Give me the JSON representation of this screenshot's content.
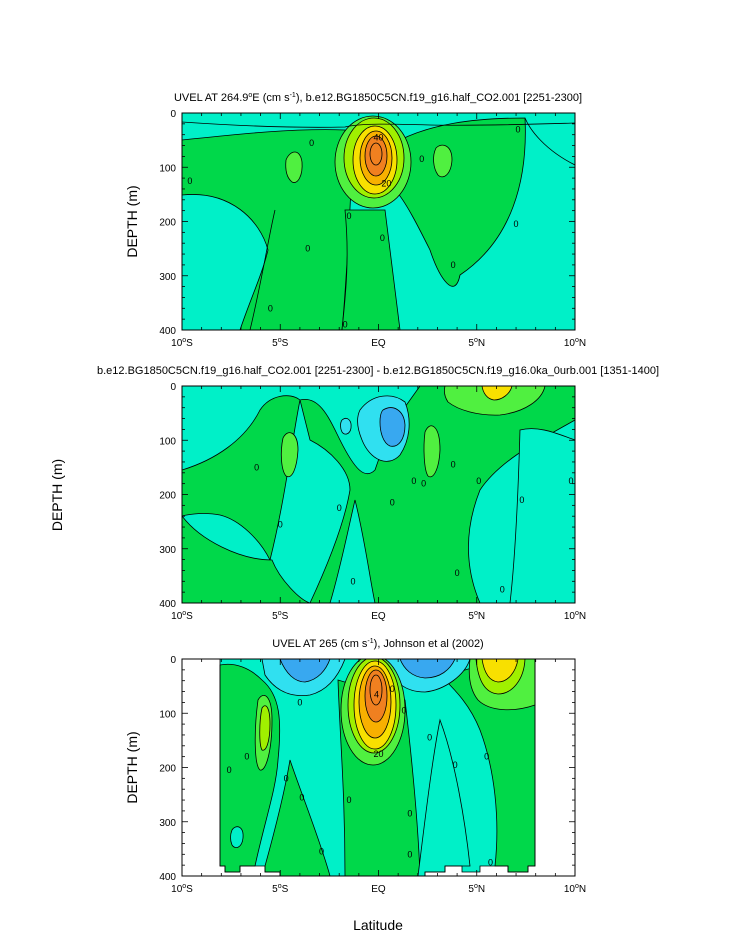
{
  "chart_data": [
    {
      "type": "contour",
      "title_main": "UVEL AT 264.9",
      "title_sup1": "o",
      "title_mid": "E (cm s",
      "title_sup2": "-1",
      "title_end": "), b.e12.BG1850C5CN.f19_g16.half_CO2.001 [2251-2300]",
      "ylabel": "DEPTH (m)",
      "ylim": [
        0,
        400
      ],
      "yticks": [
        "0",
        "100",
        "200",
        "300",
        "400"
      ],
      "xlim": [
        -10,
        10
      ],
      "xticks": [
        {
          "base": "10",
          "sup": "o",
          "tail": "S"
        },
        {
          "base": "5",
          "sup": "o",
          "tail": "S"
        },
        {
          "base": "EQ",
          "sup": "",
          "tail": ""
        },
        {
          "base": "5",
          "sup": "o",
          "tail": "N"
        },
        {
          "base": "10",
          "sup": "o",
          "tail": "N"
        }
      ],
      "contour_labels": [
        {
          "text": "40",
          "lat": 0.0,
          "depth": 45
        },
        {
          "text": "20",
          "lat": 0.4,
          "depth": 130
        },
        {
          "text": "0",
          "lat": -3.4,
          "depth": 55
        },
        {
          "text": "0",
          "lat": -9.6,
          "depth": 125
        },
        {
          "text": "0",
          "lat": -3.6,
          "depth": 250
        },
        {
          "text": "0",
          "lat": -5.5,
          "depth": 360
        },
        {
          "text": "0",
          "lat": -1.5,
          "depth": 190
        },
        {
          "text": "0",
          "lat": -1.7,
          "depth": 390
        },
        {
          "text": "0",
          "lat": 0.2,
          "depth": 230
        },
        {
          "text": "0",
          "lat": 2.2,
          "depth": 85
        },
        {
          "text": "0",
          "lat": 3.8,
          "depth": 280
        },
        {
          "text": "0",
          "lat": 7.1,
          "depth": 30
        },
        {
          "text": "0",
          "lat": 7.0,
          "depth": 205
        }
      ]
    },
    {
      "type": "contour",
      "title_main": "b.e12.BG1850C5CN.f19_g16.half_CO2.001 [2251-2300] - b.e12.BG1850C5CN.f19_g16.0ka_0urb.001 [1351-1400]",
      "ylabel": "DEPTH (m)",
      "ylim": [
        0,
        400
      ],
      "yticks": [
        "0",
        "100",
        "200",
        "300",
        "400"
      ],
      "xlim": [
        -10,
        10
      ],
      "xticks": [
        {
          "base": "10",
          "sup": "o",
          "tail": "S"
        },
        {
          "base": "5",
          "sup": "o",
          "tail": "S"
        },
        {
          "base": "EQ",
          "sup": "",
          "tail": ""
        },
        {
          "base": "5",
          "sup": "o",
          "tail": "N"
        },
        {
          "base": "10",
          "sup": "o",
          "tail": "N"
        }
      ],
      "contour_labels": [
        {
          "text": "0",
          "lat": -6.2,
          "depth": 150
        },
        {
          "text": "0",
          "lat": -5.0,
          "depth": 255
        },
        {
          "text": "0",
          "lat": -2.0,
          "depth": 225
        },
        {
          "text": "0",
          "lat": -1.3,
          "depth": 360
        },
        {
          "text": "0",
          "lat": 0.7,
          "depth": 215
        },
        {
          "text": "0",
          "lat": 1.8,
          "depth": 175
        },
        {
          "text": "0",
          "lat": 2.3,
          "depth": 180
        },
        {
          "text": "0",
          "lat": 3.8,
          "depth": 145
        },
        {
          "text": "0",
          "lat": 4.0,
          "depth": 345
        },
        {
          "text": "0",
          "lat": 5.1,
          "depth": 175
        },
        {
          "text": "0",
          "lat": 6.3,
          "depth": 375
        },
        {
          "text": "0",
          "lat": 7.3,
          "depth": 210
        },
        {
          "text": "0",
          "lat": 9.8,
          "depth": 175
        }
      ]
    },
    {
      "type": "contour",
      "title_main": "UVEL AT 265 (cm s",
      "title_sup2": "-1",
      "title_end": "), Johnson et al (2002)",
      "ylabel": "DEPTH (m)",
      "ylim": [
        0,
        400
      ],
      "yticks": [
        "0",
        "100",
        "200",
        "300",
        "400"
      ],
      "xlim": [
        -10,
        10
      ],
      "xticks": [
        {
          "base": "10",
          "sup": "o",
          "tail": "S"
        },
        {
          "base": "5",
          "sup": "o",
          "tail": "S"
        },
        {
          "base": "EQ",
          "sup": "",
          "tail": ""
        },
        {
          "base": "5",
          "sup": "o",
          "tail": "N"
        },
        {
          "base": "10",
          "sup": "o",
          "tail": "N"
        }
      ],
      "contour_labels": [
        {
          "text": "4",
          "lat": -0.1,
          "depth": 65
        },
        {
          "text": "0",
          "lat": 0.7,
          "depth": 55
        },
        {
          "text": "20",
          "lat": 0.0,
          "depth": 175
        },
        {
          "text": "0",
          "lat": -7.6,
          "depth": 205
        },
        {
          "text": "0",
          "lat": -6.7,
          "depth": 180
        },
        {
          "text": "0",
          "lat": -4.7,
          "depth": 220
        },
        {
          "text": "0",
          "lat": -4.0,
          "depth": 80
        },
        {
          "text": "0",
          "lat": -3.9,
          "depth": 255
        },
        {
          "text": "0",
          "lat": -2.9,
          "depth": 355
        },
        {
          "text": "0",
          "lat": -1.5,
          "depth": 260
        },
        {
          "text": "0",
          "lat": 1.3,
          "depth": 95
        },
        {
          "text": "0",
          "lat": 2.6,
          "depth": 145
        },
        {
          "text": "0",
          "lat": 1.6,
          "depth": 285
        },
        {
          "text": "0",
          "lat": 1.6,
          "depth": 360
        },
        {
          "text": "0",
          "lat": 3.9,
          "depth": 195
        },
        {
          "text": "0",
          "lat": 5.5,
          "depth": 180
        },
        {
          "text": "0",
          "lat": 5.7,
          "depth": 375
        }
      ]
    }
  ],
  "shared": {
    "xlabel": "Latitude",
    "outer_ylabel": "DEPTH (m)"
  },
  "colors": {
    "cyan": "#00f0c8",
    "lightcyan": "#30e0f0",
    "blue": "#38a8f0",
    "lightgreen": "#50f040",
    "green": "#00d84a",
    "yellowgreen": "#a0f000",
    "yellow": "#f8e000",
    "orange": "#f8b000",
    "darkorange": "#f08020"
  }
}
